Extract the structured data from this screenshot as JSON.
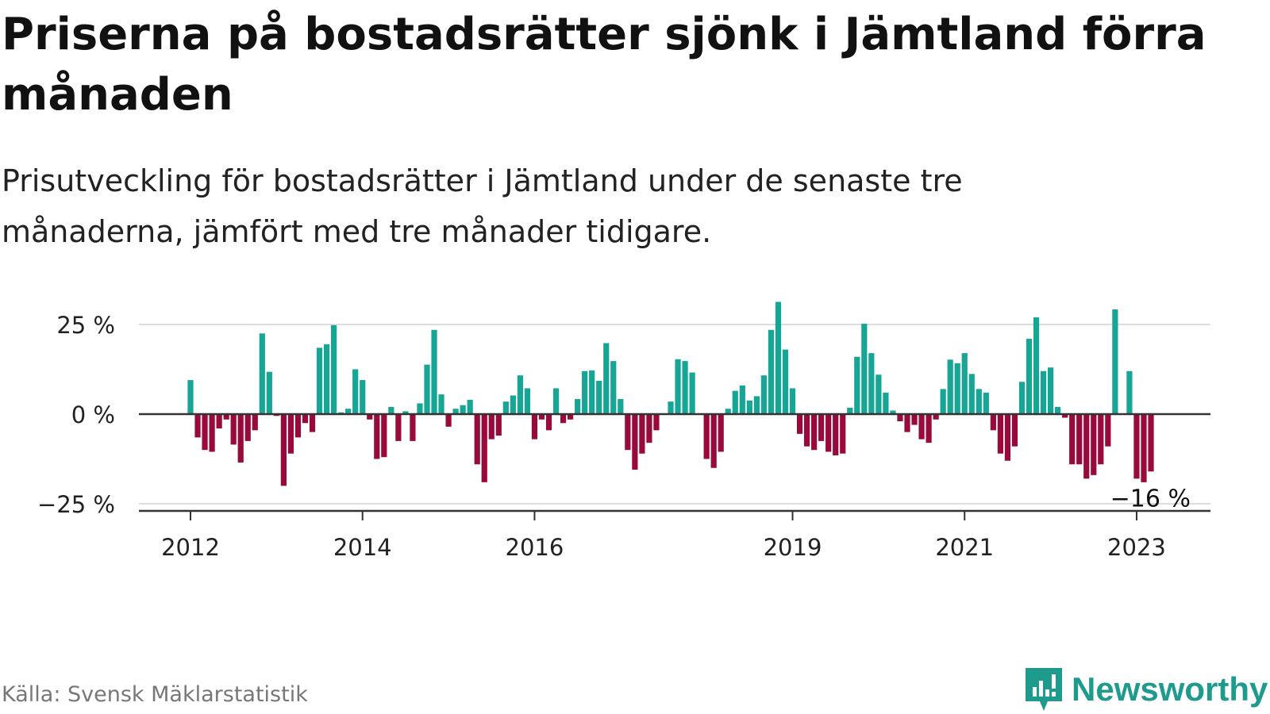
{
  "title": "Priserna på bostadsrätter sjönk i Jämtland förra månaden",
  "subtitle": "Prisutveckling för bostadsrätter i Jämtland under de senaste tre månaderna, jämfört med tre månader tidigare.",
  "source": "Källa: Svensk Mäklarstatistik",
  "brand": {
    "name": "Newsworthy",
    "color": "#1f9b8d"
  },
  "colors": {
    "positive": "#17a596",
    "negative": "#990a3c",
    "grid": "#dddddd",
    "axis": "#333333"
  },
  "chart_data": {
    "type": "bar",
    "y_unit": "%",
    "ylim": [
      -27,
      33
    ],
    "y_ticks": [
      {
        "value": 25,
        "label": "25 %"
      },
      {
        "value": 0,
        "label": "0 %"
      },
      {
        "value": -25,
        "label": "−25 %"
      }
    ],
    "x_ticks": [
      {
        "index": 0,
        "label": "2012"
      },
      {
        "index": 24,
        "label": "2014"
      },
      {
        "index": 48,
        "label": "2016"
      },
      {
        "index": 84,
        "label": "2019"
      },
      {
        "index": 108,
        "label": "2021"
      },
      {
        "index": 132,
        "label": "2023"
      }
    ],
    "last_value_label": "−16 %",
    "series": [
      {
        "start": "2012-01",
        "frequency": "monthly",
        "values": [
          9.5,
          -6.5,
          -10,
          -10.5,
          -4,
          -1.5,
          -8.5,
          -13.5,
          -7.5,
          -4.5,
          22.5,
          11.8,
          -0.5,
          -20,
          -11,
          -6.5,
          -2.5,
          -5,
          18.5,
          19.5,
          24.8,
          0.5,
          1.5,
          12.5,
          9.5,
          -1.5,
          -12.5,
          -12,
          2,
          -7.5,
          0.8,
          -7.5,
          3,
          13.8,
          23.5,
          5.5,
          -3.5,
          1.5,
          2.5,
          4,
          -14,
          -19,
          -7,
          -6,
          3.5,
          5.2,
          10.8,
          7.2,
          -7,
          -1.5,
          -4.5,
          7.2,
          -2.5,
          -1.5,
          4.2,
          12,
          12.2,
          9.3,
          19.8,
          14.8,
          4.2,
          -10,
          -15.5,
          -11,
          -8,
          -4.5,
          0,
          3.5,
          15.3,
          14.8,
          11.6,
          0,
          -12.5,
          -15,
          -10.5,
          1.5,
          6.5,
          8,
          3.8,
          5,
          10.8,
          23.5,
          31.3,
          18,
          7.2,
          -5.5,
          -9,
          -10,
          -7.5,
          -10.5,
          -11.5,
          -11,
          1.8,
          16,
          25.2,
          17,
          11,
          6,
          1,
          -2,
          -5,
          -3,
          -7,
          -8,
          -1.5,
          7,
          15.2,
          14.2,
          17,
          11.2,
          7,
          6,
          -4.5,
          -11,
          -13,
          -9,
          9,
          21,
          27,
          12,
          13,
          2,
          -1,
          -14,
          -14,
          -18,
          -17,
          -14,
          -9,
          29.2,
          0,
          12,
          -18,
          -19,
          -16
        ]
      }
    ]
  }
}
